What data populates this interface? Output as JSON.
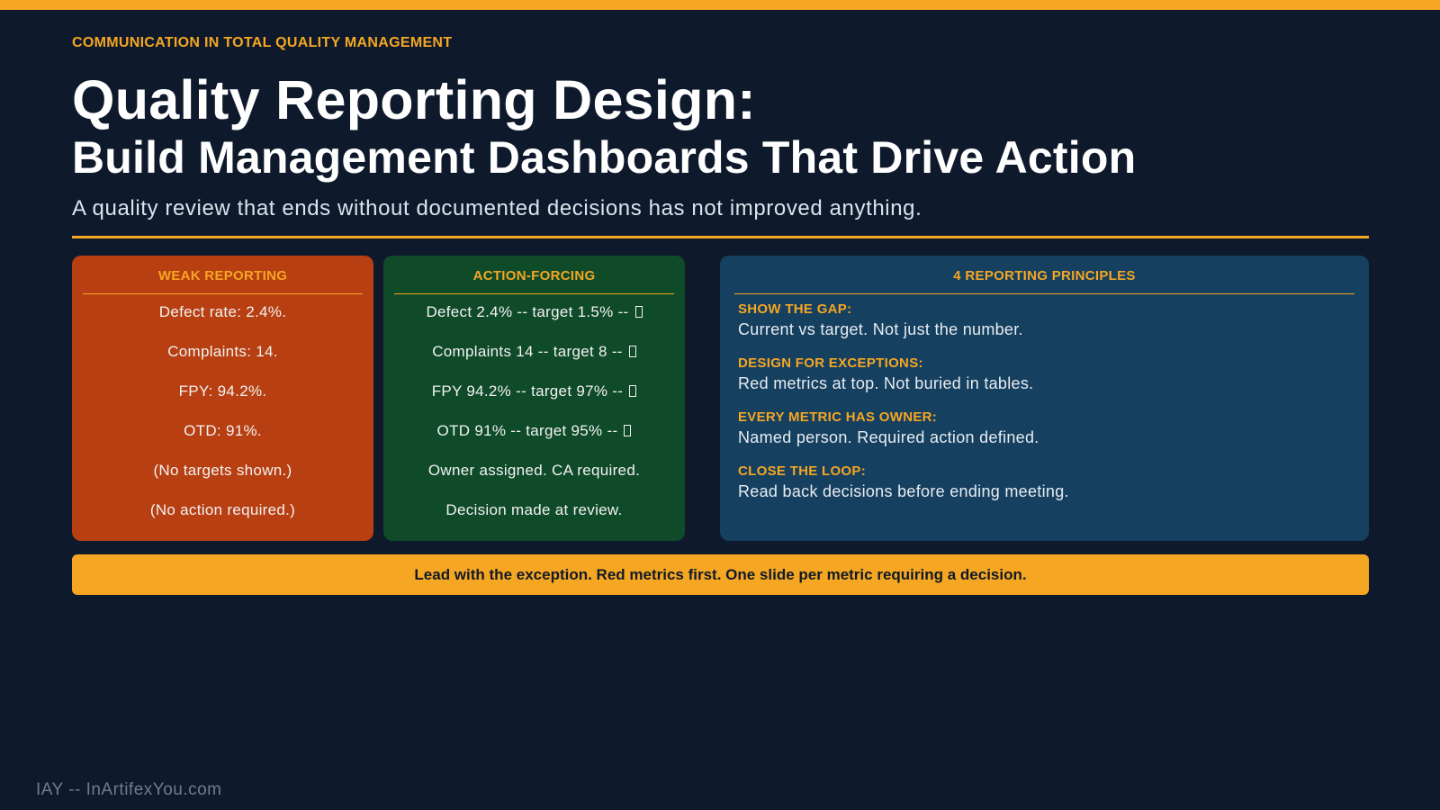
{
  "eyebrow": "COMMUNICATION IN TOTAL QUALITY MANAGEMENT",
  "title": "Quality Reporting Design:",
  "subtitle": "Build Management Dashboards That Drive Action",
  "tagline": "A quality review that ends without documented decisions has not improved anything.",
  "colors": {
    "background": "#0e1a2b",
    "accent": "#f5a623",
    "weak_card": "#b83f11",
    "action_card": "#0f4a29",
    "principles_card": "#16405f"
  },
  "weak": {
    "heading": "WEAK REPORTING",
    "lines": [
      "Defect rate: 2.4%.",
      "Complaints: 14.",
      "FPY: 94.2%.",
      "OTD: 91%.",
      "(No targets shown.)",
      "(No action required.)"
    ]
  },
  "action": {
    "heading": "ACTION-FORCING",
    "lines": [
      "Defect 2.4% -- target 1.5% -- ",
      "Complaints 14 -- target 8 -- ",
      "FPY 94.2% -- target 97% -- ",
      "OTD 91% -- target 95% -- ",
      "Owner assigned. CA required.",
      "Decision made at review."
    ],
    "status_icon": "status-box-icon"
  },
  "principles": {
    "heading": "4 REPORTING PRINCIPLES",
    "items": [
      {
        "title": "SHOW THE GAP:",
        "text": "Current vs target. Not just the number."
      },
      {
        "title": "DESIGN FOR EXCEPTIONS:",
        "text": "Red metrics at top. Not buried in tables."
      },
      {
        "title": "EVERY METRIC HAS OWNER:",
        "text": "Named person. Required action defined."
      },
      {
        "title": "CLOSE THE LOOP:",
        "text": "Read back decisions before ending meeting."
      }
    ]
  },
  "callout": "Lead with the exception. Red metrics first. One slide per metric requiring a decision.",
  "footer": "IAY -- InArtifexYou.com"
}
